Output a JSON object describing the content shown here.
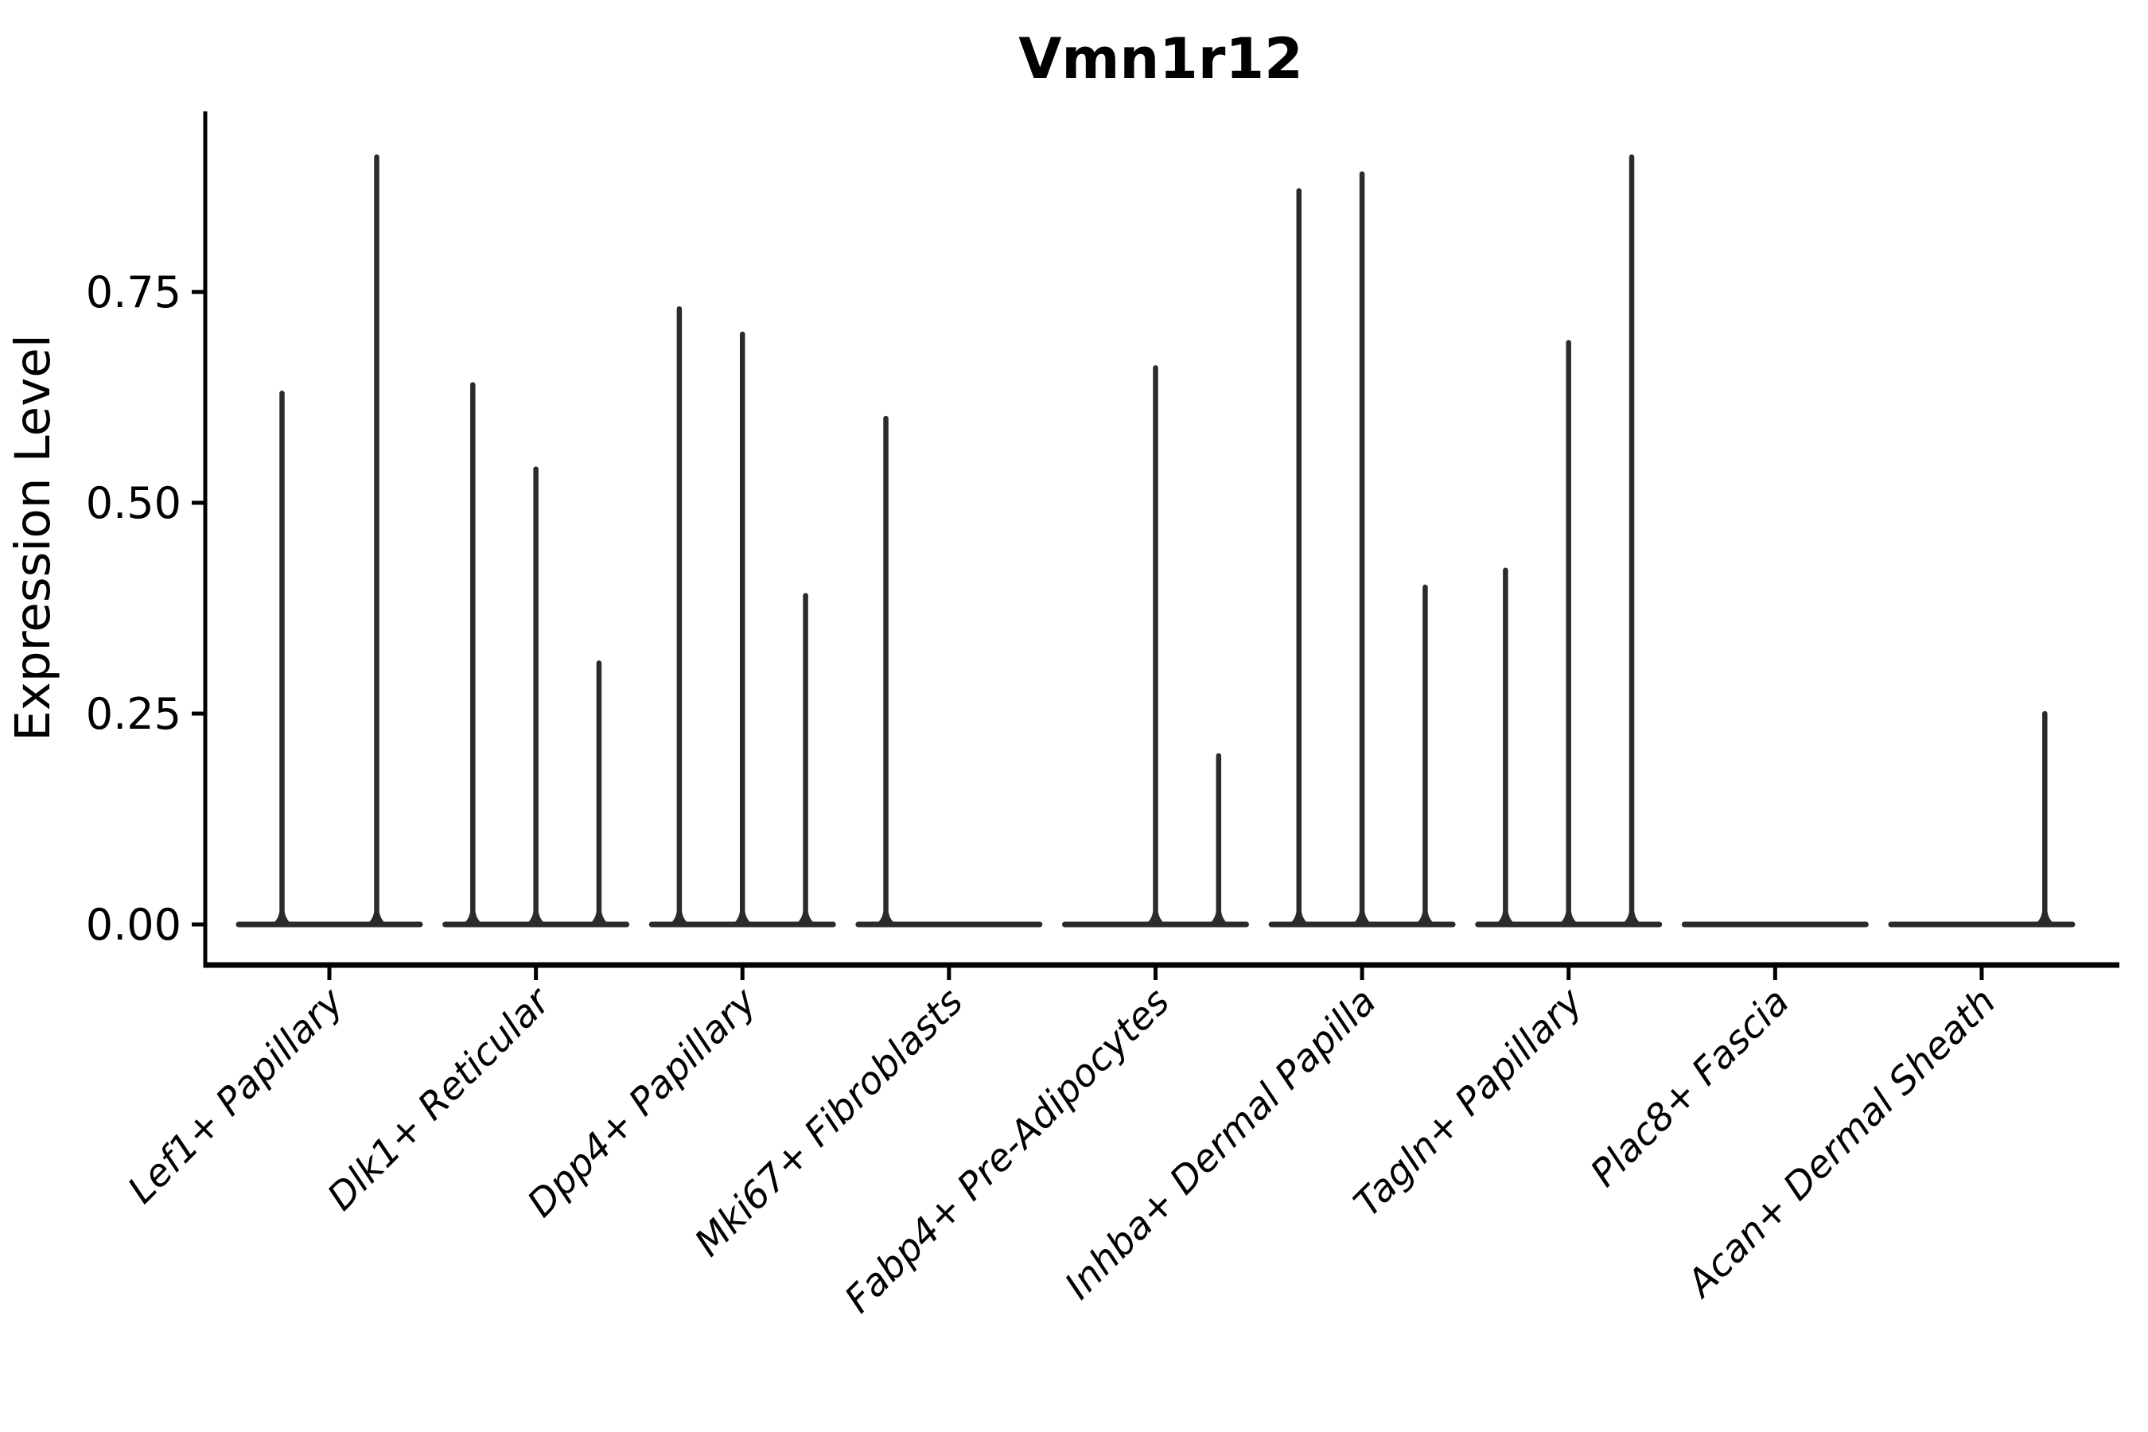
{
  "chart_data": {
    "type": "violin",
    "title": "Vmn1r12",
    "xlabel": "",
    "ylabel": "Expression Level",
    "ylim": [
      0,
      0.965
    ],
    "grid": false,
    "legend": "none",
    "yticks": [
      {
        "v": 0.0,
        "label": "0.00"
      },
      {
        "v": 0.25,
        "label": "0.25"
      },
      {
        "v": 0.5,
        "label": "0.50"
      },
      {
        "v": 0.75,
        "label": "0.75"
      }
    ],
    "categories": [
      "Lef1+ Papillary",
      "Dlk1+ Reticular",
      "Dpp4+ Papillary",
      "Mki67+ Fibroblasts",
      "Fabp4+ Pre-Adipocytes",
      "Inhba+ Dermal Papilla",
      "Tagln+ Papillary",
      "Plac8+ Fascia",
      "Acan+ Dermal Sheath"
    ],
    "groups": [
      {
        "label": "Lef1+ Papillary",
        "violin_peaks": [
          0.63,
          0.91
        ]
      },
      {
        "label": "Dlk1+ Reticular",
        "violin_peaks": [
          0.64,
          0.54,
          0.31
        ]
      },
      {
        "label": "Dpp4+ Papillary",
        "violin_peaks": [
          0.73,
          0.7,
          0.39
        ]
      },
      {
        "label": "Mki67+ Fibroblasts",
        "violin_peaks": [
          0.6,
          0,
          0
        ]
      },
      {
        "label": "Fabp4+ Pre-Adipocytes",
        "violin_peaks": [
          0,
          0.66,
          0.2
        ]
      },
      {
        "label": "Inhba+ Dermal Papilla",
        "violin_peaks": [
          0.87,
          0.89,
          0.4
        ]
      },
      {
        "label": "Tagln+ Papillary",
        "violin_peaks": [
          0.42,
          0.69,
          0.91
        ]
      },
      {
        "label": "Plac8+ Fascia",
        "violin_peaks": [
          0,
          0,
          0
        ]
      },
      {
        "label": "Acan+ Dermal Sheath",
        "violin_peaks": [
          0,
          0,
          0.25
        ]
      }
    ],
    "colors": {
      "violin": "#2b2b2b",
      "axis": "#000000",
      "text": "#000000",
      "background": "#ffffff"
    }
  }
}
